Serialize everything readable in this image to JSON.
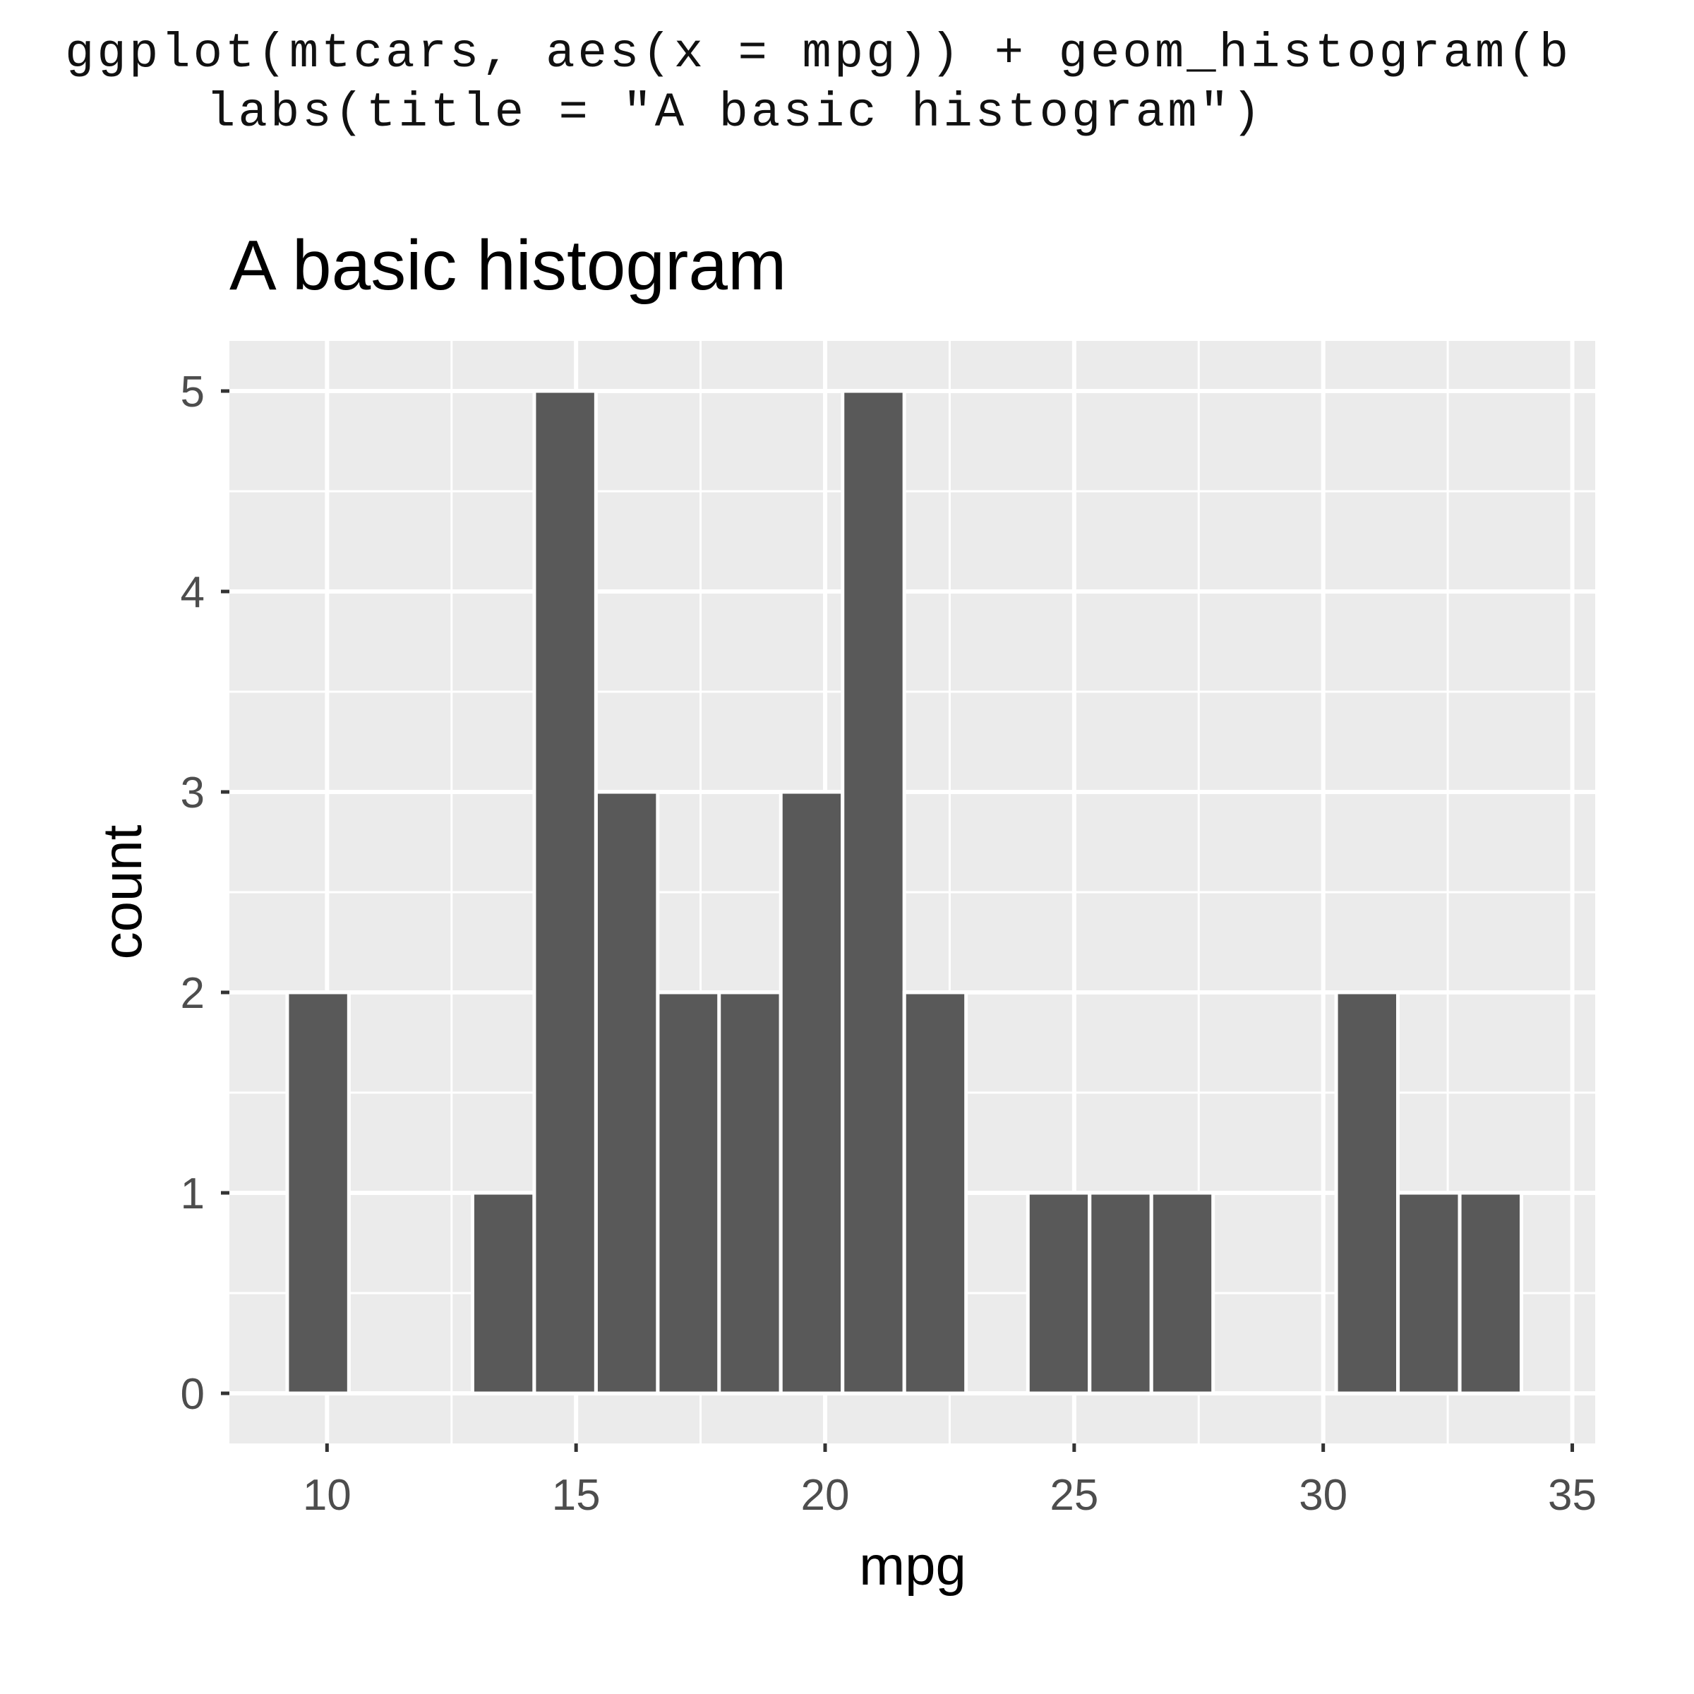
{
  "code": {
    "line1": "ggplot(mtcars, aes(x = mpg)) + geom_histogram(b",
    "line2": "labs(title = \"A basic histogram\")"
  },
  "chart_data": {
    "type": "bar",
    "title": "A basic histogram",
    "xlabel": "mpg",
    "ylabel": "count",
    "xlim": [
      8.04,
      35.46
    ],
    "ylim": [
      -0.25,
      5.25
    ],
    "binwidth": 1.2389,
    "x": [
      9.82,
      11.06,
      12.3,
      13.54,
      14.78,
      16.02,
      17.26,
      18.49,
      19.73,
      20.97,
      22.21,
      23.45,
      24.69,
      25.93,
      27.17,
      28.4,
      29.64,
      30.88,
      32.12,
      33.36
    ],
    "values": [
      2,
      0,
      0,
      1,
      5,
      3,
      2,
      2,
      3,
      5,
      2,
      0,
      1,
      1,
      1,
      0,
      0,
      2,
      1,
      1
    ],
    "x_ticks": [
      "10",
      "15",
      "20",
      "25",
      "30",
      "35"
    ],
    "y_ticks": [
      "0",
      "1",
      "2",
      "3",
      "4",
      "5"
    ],
    "grid": true,
    "colors": {
      "panel_background": "#EBEBEB",
      "grid": "#FFFFFF",
      "bar_fill": "#595959",
      "bar_outline": "#FFFFFF",
      "tick_label": "#4D4D4D",
      "axis_title": "#000000"
    }
  }
}
